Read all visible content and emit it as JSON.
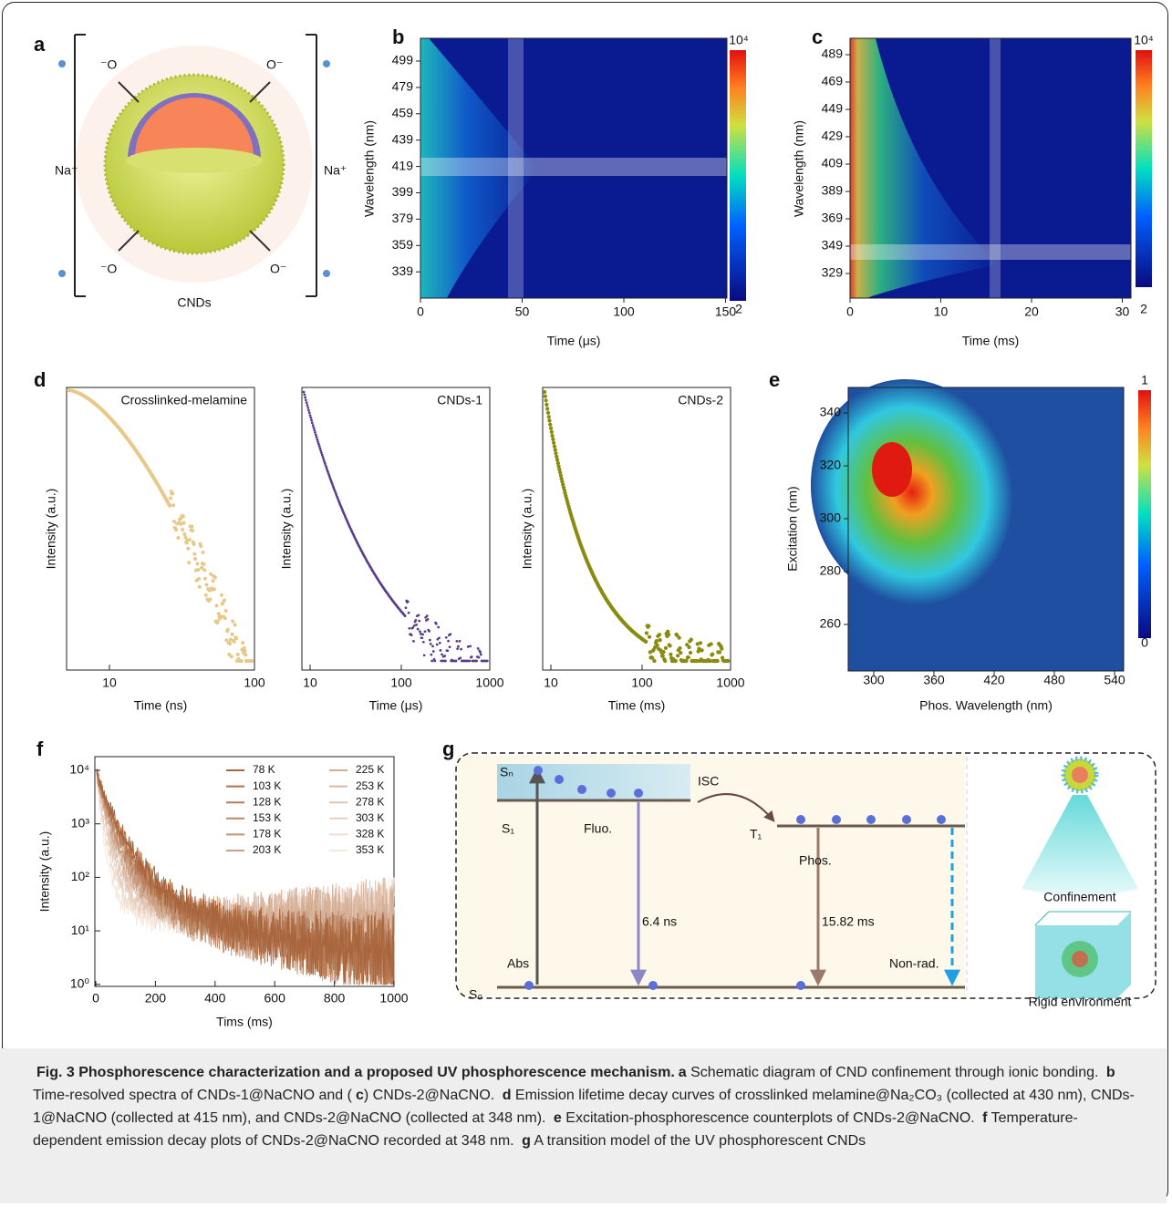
{
  "panels": {
    "a": {
      "label": "a",
      "cations": [
        "Na⁺",
        "Na⁺"
      ],
      "anions": [
        "⁻O",
        "O⁻",
        "⁻O",
        "O⁻"
      ],
      "caption": "CNDs"
    },
    "b": {
      "label": "b",
      "ylabel": "Wavelength (nm)",
      "xlabel": "Time (μs)",
      "yticks": [
        "499",
        "479",
        "459",
        "439",
        "419",
        "399",
        "379",
        "359",
        "339"
      ],
      "xticks": [
        "0",
        "50",
        "100",
        "150"
      ],
      "cbar_max": "10⁴",
      "cbar_min": "2"
    },
    "c": {
      "label": "c",
      "ylabel": "Wavelength (nm)",
      "xlabel": "Time (ms)",
      "yticks": [
        "489",
        "469",
        "449",
        "429",
        "409",
        "389",
        "369",
        "349",
        "329"
      ],
      "xticks": [
        "0",
        "10",
        "20",
        "30"
      ],
      "cbar_max": "10⁴",
      "cbar_min": "2"
    },
    "d": {
      "label": "d",
      "plots": [
        {
          "title": "Crosslinked-melamine",
          "ylabel": "Intensity (a.u.)",
          "xlabel": "Time (ns)",
          "xticks": [
            "10",
            "100"
          ]
        },
        {
          "title": "CNDs-1",
          "ylabel": "Intensity (a.u.)",
          "xlabel": "Time (μs)",
          "xticks": [
            "10",
            "100",
            "1000"
          ]
        },
        {
          "title": "CNDs-2",
          "ylabel": "Intensity (a.u.)",
          "xlabel": "Time (ms)",
          "xticks": [
            "10",
            "100",
            "1000"
          ]
        }
      ]
    },
    "e": {
      "label": "e",
      "ylabel": "Excitation (nm)",
      "xlabel": "Phos. Wavelength (nm)",
      "yticks": [
        "340",
        "320",
        "300",
        "280",
        "260"
      ],
      "xticks": [
        "300",
        "360",
        "420",
        "480",
        "540"
      ],
      "cbar_max": "1",
      "cbar_min": "0"
    },
    "f": {
      "label": "f",
      "ylabel": "Intensity (a.u.)",
      "xlabel": "Tims (ms)",
      "yticks": [
        "10⁴",
        "10³",
        "10²",
        "10¹",
        "10⁰"
      ],
      "xticks": [
        "0",
        "200",
        "400",
        "600",
        "800",
        "1000"
      ],
      "legend": [
        "78 K",
        "103 K",
        "128 K",
        "153 K",
        "178 K",
        "203 K",
        "225 K",
        "253 K",
        "278 K",
        "303 K",
        "328 K",
        "353 K"
      ]
    },
    "g": {
      "label": "g",
      "sn": "Sₙ",
      "s1": "S₁",
      "isc": "ISC",
      "t1": "T₁",
      "fluo": "Fluo.",
      "fluo_time": "6.4 ns",
      "phos": "Phos.",
      "phos_time": "15.82 ms",
      "abs": "Abs",
      "nonrad": "Non-rad.",
      "s0": "S₀",
      "confinement": "Confinement",
      "rigid": "Rigid environment"
    }
  },
  "caption": [
    {
      "text": "Fig. 3 Phosphorescence characterization and a proposed UV phosphorescence mechanism.",
      "bold": true
    },
    {
      "text": "a",
      "bold": true
    },
    {
      "text": " Schematic diagram of CND confinement through ionic bonding. ",
      "bold": false
    },
    {
      "text": "b",
      "bold": true
    },
    {
      "text": " Time-resolved spectra of CNDs-1@NaCNO and (",
      "bold": false
    },
    {
      "text": "c",
      "bold": true
    },
    {
      "text": ") CNDs-2@NaCNO. ",
      "bold": false
    },
    {
      "text": "d",
      "bold": true
    },
    {
      "text": " Emission lifetime decay curves of crosslinked melamine@Na₂CO₃ (collected at 430 nm), CNDs-1@NaCNO (collected at 415 nm), and CNDs-2@NaCNO (collected at 348 nm). ",
      "bold": false
    },
    {
      "text": "e",
      "bold": true
    },
    {
      "text": " Excitation-phosphorescence counterplots of CNDs-2@NaCNO. ",
      "bold": false
    },
    {
      "text": "f",
      "bold": true
    },
    {
      "text": " Temperature-dependent emission decay plots of CNDs-2@NaCNO recorded at 348 nm. ",
      "bold": false
    },
    {
      "text": "g",
      "bold": true
    },
    {
      "text": " A transition model of the UV phosphorescent CNDs",
      "bold": false
    }
  ]
}
